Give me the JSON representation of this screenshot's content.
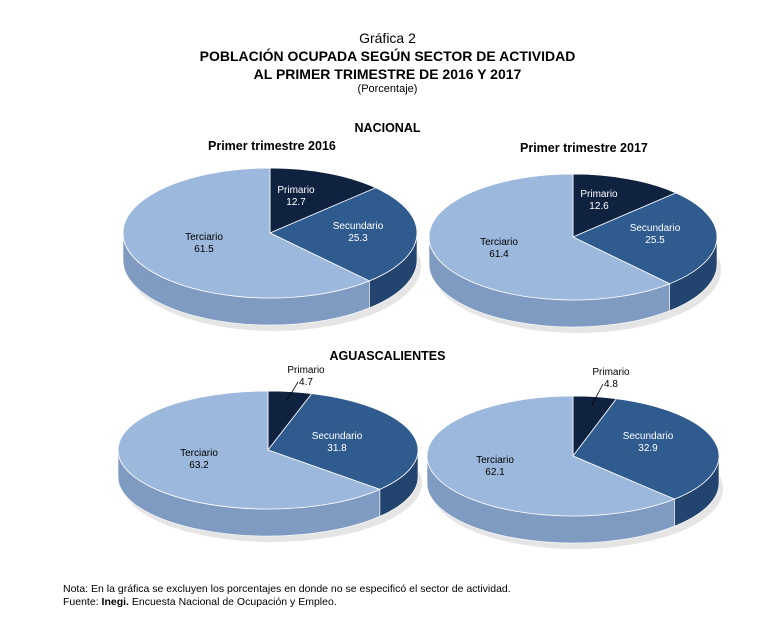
{
  "header": {
    "kicker": "Gráfica 2",
    "title_line1": "POBLACIÓN OCUPADA SEGÚN SECTOR DE ACTIVIDAD",
    "title_line2": "AL PRIMER TRIMESTRE DE 2016 Y 2017",
    "unit": "(Porcentaje)"
  },
  "sections": {
    "nacional": "NACIONAL",
    "aguascalientes": "AGUASCALIENTES"
  },
  "subtitles": {
    "y2016": "Primer trimestre  2016",
    "y2017": "Primer trimestre  2017"
  },
  "colors": {
    "primario": "#0f2340",
    "secundario": "#2f5b8f",
    "terciario": "#9cb8dd"
  },
  "chart_data": [
    {
      "type": "pie",
      "section": "NACIONAL",
      "title": "Primer trimestre  2016",
      "categories": [
        "Primario",
        "Secundario",
        "Terciario"
      ],
      "labels": [
        "Primario",
        "Secundario",
        "Terciario"
      ],
      "values": [
        12.7,
        25.3,
        61.5
      ]
    },
    {
      "type": "pie",
      "section": "NACIONAL",
      "title": "Primer trimestre  2017",
      "categories": [
        "Primario",
        "Secundario",
        "Terciario"
      ],
      "labels": [
        "Primario",
        "Secundario",
        "Terciario"
      ],
      "values": [
        12.6,
        25.5,
        61.4
      ]
    },
    {
      "type": "pie",
      "section": "AGUASCALIENTES",
      "title": "",
      "categories": [
        "Primario",
        "Secundario",
        "Terciario"
      ],
      "labels": [
        "Primario",
        "Secundario",
        "Terciario"
      ],
      "values": [
        4.7,
        31.8,
        63.2
      ]
    },
    {
      "type": "pie",
      "section": "AGUASCALIENTES",
      "title": "",
      "categories": [
        "Primario",
        "Secundario",
        "Terciario"
      ],
      "labels": [
        "Primario",
        "Secundario",
        "Terciario"
      ],
      "values": [
        4.8,
        32.9,
        62.1
      ]
    }
  ],
  "footer": {
    "note": "Nota: En la gráfica se excluyen los porcentajes en donde no se especificó el sector de actividad.",
    "source_prefix": "Fuente: ",
    "source_bold": "Inegi.",
    "source_text": " Encuesta Nacional de Ocupación y Empleo."
  }
}
